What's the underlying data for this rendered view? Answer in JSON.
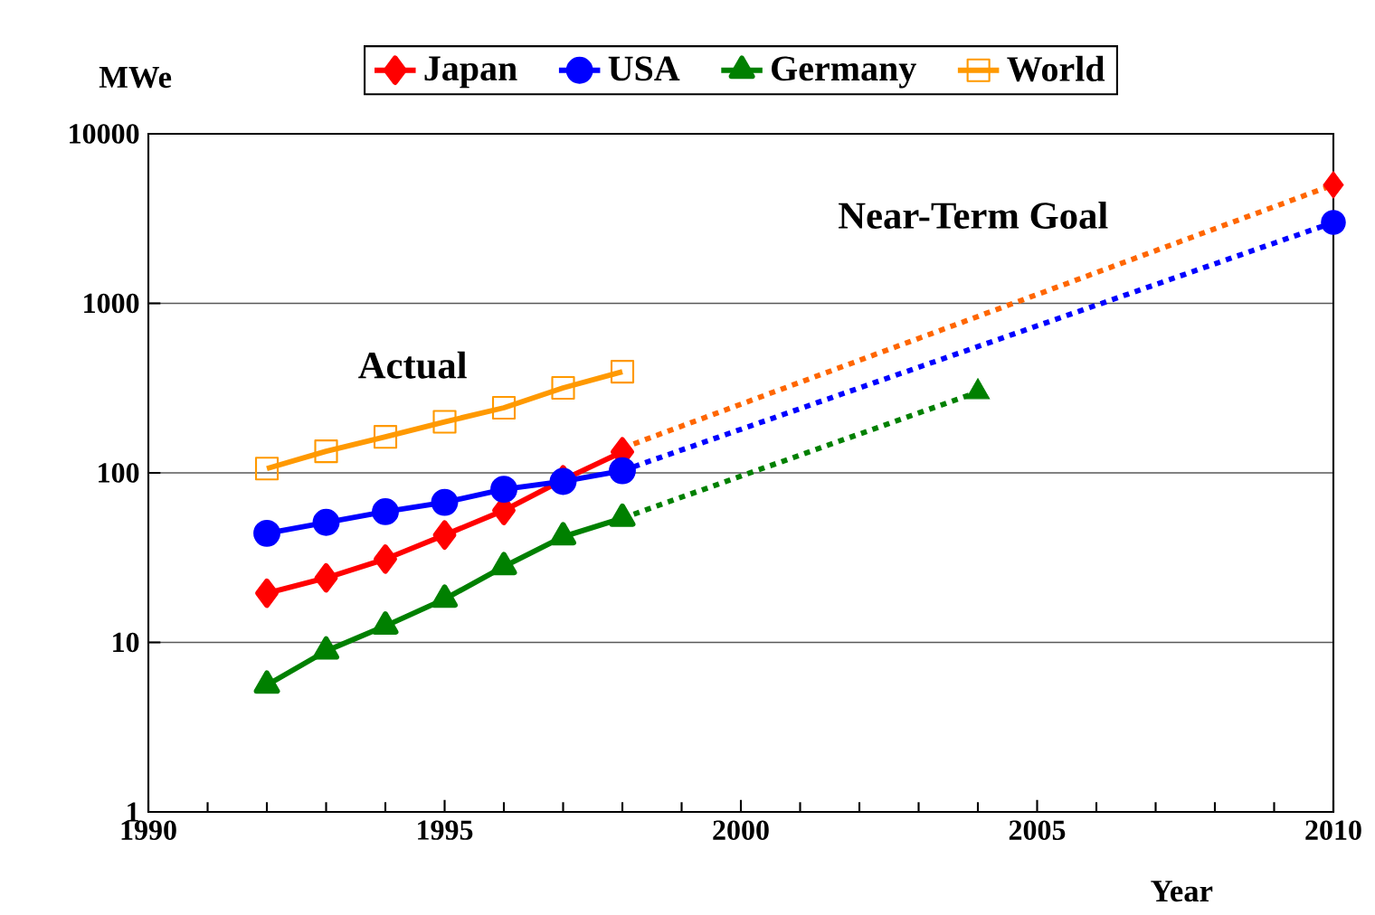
{
  "chart_data": {
    "type": "line",
    "xlabel": "Year",
    "ylabel": "MWe",
    "log": "y",
    "grid": "y",
    "legend": "top",
    "xlim": [
      1990,
      2010
    ],
    "xticks": [
      1990,
      1995,
      2000,
      2005,
      2010
    ],
    "ylim": [
      1,
      10000
    ],
    "yticks": [
      1,
      10,
      100,
      1000,
      10000
    ],
    "annotations": [
      "Actual",
      "Near-Term Goal"
    ],
    "series": [
      {
        "name": "Japan",
        "color": "#ff0000",
        "marker": "diamond",
        "line_style": "solid",
        "x": [
          1992,
          1993,
          1994,
          1995,
          1996,
          1997,
          1998
        ],
        "values": [
          19.5,
          24,
          31,
          43,
          60,
          91,
          133
        ]
      },
      {
        "name": "USA",
        "color": "#0000ff",
        "marker": "circle",
        "line_style": "solid",
        "x": [
          1992,
          1993,
          1994,
          1995,
          1996,
          1997,
          1998
        ],
        "values": [
          44,
          51,
          59,
          67,
          80,
          89,
          103
        ]
      },
      {
        "name": "Germany",
        "color": "#008000",
        "marker": "triangle",
        "line_style": "solid",
        "x": [
          1992,
          1993,
          1994,
          1995,
          1996,
          1997,
          1998
        ],
        "values": [
          5.6,
          8.9,
          12.5,
          18,
          28,
          42,
          54
        ]
      },
      {
        "name": "World",
        "color": "#ff9900",
        "marker": "square",
        "line_style": "solid",
        "x": [
          1992,
          1993,
          1994,
          1995,
          1996,
          1997,
          1998
        ],
        "values": [
          106,
          134,
          163,
          200,
          242,
          317,
          395
        ]
      },
      {
        "color": "#ff6600",
        "marker": "none",
        "line_style": "dotted",
        "x": [
          1998,
          2010
        ],
        "values": [
          140,
          5000
        ]
      },
      {
        "color": "#0000ff",
        "marker": "none",
        "line_style": "dotted",
        "x": [
          1998,
          2010
        ],
        "values": [
          103,
          3000
        ]
      },
      {
        "color": "#008000",
        "marker": "none",
        "line_style": "dotted",
        "x": [
          1998,
          2004
        ],
        "values": [
          54,
          300
        ]
      },
      {
        "type": "scatter",
        "color": "#ff0000",
        "marker": "diamond",
        "x": [
          2010
        ],
        "values": [
          5000
        ]
      },
      {
        "type": "scatter",
        "color": "#0000ff",
        "marker": "circle",
        "x": [
          2010
        ],
        "values": [
          3000
        ]
      },
      {
        "type": "scatter",
        "color": "#008000",
        "marker": "triangle",
        "x": [
          2004
        ],
        "values": [
          300
        ]
      }
    ]
  }
}
